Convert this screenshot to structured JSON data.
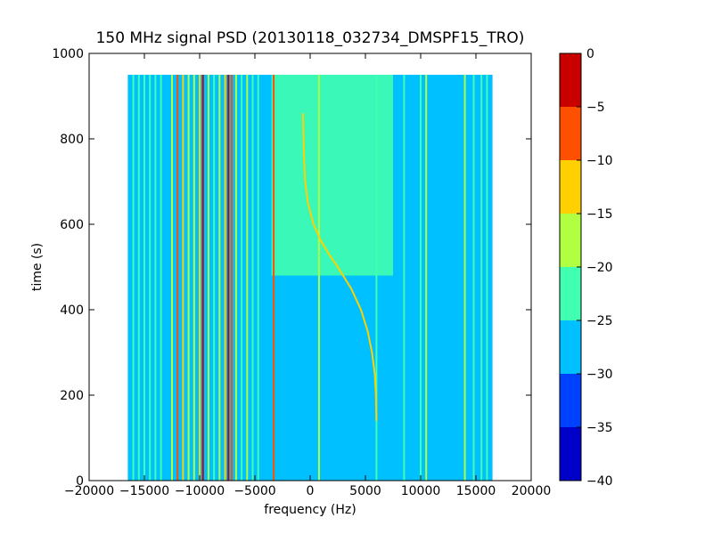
{
  "chart_data": {
    "type": "heatmap",
    "title": "150 MHz signal PSD (20130118_032734_DMSPF15_TRO)",
    "xlabel": "frequency (Hz)",
    "ylabel": "time (s)",
    "xlim": [
      -20000,
      20000
    ],
    "ylim": [
      0,
      1000
    ],
    "x_ticks": [
      -20000,
      -15000,
      -10000,
      -5000,
      0,
      5000,
      10000,
      15000,
      20000
    ],
    "x_tick_labels": [
      "−20000",
      "−15000",
      "−10000",
      "−5000",
      "0",
      "5000",
      "10000",
      "15000",
      "20000"
    ],
    "y_ticks": [
      0,
      200,
      400,
      600,
      800,
      1000
    ],
    "y_tick_labels": [
      "0",
      "200",
      "400",
      "600",
      "800",
      "1000"
    ],
    "data_extent": {
      "freq_min": -16500,
      "freq_max": 16500,
      "time_min": 0,
      "time_max": 950
    },
    "background_level": -27.5,
    "enhanced_band": {
      "level": -22.5,
      "time_min": 480,
      "time_max": 950,
      "freq_min": -3500,
      "freq_max": 7500
    },
    "colorbar": {
      "range": [
        -40,
        0
      ],
      "levels": [
        -40,
        -35,
        -30,
        -25,
        -20,
        -15,
        -10,
        -5,
        0
      ],
      "tick_labels": [
        "−40",
        "−35",
        "−30",
        "−25",
        "−20",
        "−15",
        "−10",
        "−5",
        "0"
      ],
      "colors": [
        "#0000c8",
        "#0040ff",
        "#00c0ff",
        "#40ffb0",
        "#b0ff40",
        "#ffd000",
        "#ff5000",
        "#c80000"
      ]
    },
    "spectral_lines": [
      {
        "freq": -16000,
        "level": -22,
        "time_min": 0,
        "time_max": 950
      },
      {
        "freq": -15500,
        "level": -22,
        "time_min": 0,
        "time_max": 950
      },
      {
        "freq": -15000,
        "level": -22,
        "time_min": 0,
        "time_max": 950
      },
      {
        "freq": -14500,
        "level": -22,
        "time_min": 0,
        "time_max": 950
      },
      {
        "freq": -14000,
        "level": -22,
        "time_min": 0,
        "time_max": 950
      },
      {
        "freq": -13500,
        "level": -22,
        "time_min": 0,
        "time_max": 950
      },
      {
        "freq": -12500,
        "level": -17,
        "time_min": 0,
        "time_max": 950
      },
      {
        "freq": -12000,
        "level": -7,
        "time_min": 0,
        "time_max": 950
      },
      {
        "freq": -11500,
        "level": -12,
        "time_min": 0,
        "time_max": 950
      },
      {
        "freq": -11000,
        "level": -17,
        "time_min": 0,
        "time_max": 950
      },
      {
        "freq": -10500,
        "level": -17,
        "time_min": 0,
        "time_max": 950
      },
      {
        "freq": -10000,
        "level": -12,
        "time_min": 0,
        "time_max": 950
      },
      {
        "freq": -9700,
        "level": -2,
        "time_min": 0,
        "time_max": 950
      },
      {
        "freq": -9200,
        "level": -17,
        "time_min": 0,
        "time_max": 950
      },
      {
        "freq": -8700,
        "level": -22,
        "time_min": 0,
        "time_max": 950
      },
      {
        "freq": -8200,
        "level": -17,
        "time_min": 0,
        "time_max": 950
      },
      {
        "freq": -7700,
        "level": -12,
        "time_min": 0,
        "time_max": 950
      },
      {
        "freq": -7400,
        "level": -2,
        "time_min": 0,
        "time_max": 950
      },
      {
        "freq": -7100,
        "level": -7,
        "time_min": 0,
        "time_max": 950
      },
      {
        "freq": -6700,
        "level": -17,
        "time_min": 0,
        "time_max": 950
      },
      {
        "freq": -6200,
        "level": -22,
        "time_min": 0,
        "time_max": 950
      },
      {
        "freq": -5700,
        "level": -17,
        "time_min": 0,
        "time_max": 950
      },
      {
        "freq": -5200,
        "level": -22,
        "time_min": 0,
        "time_max": 950
      },
      {
        "freq": -4700,
        "level": -22,
        "time_min": 0,
        "time_max": 950
      },
      {
        "freq": -3300,
        "level": -7,
        "time_min": 0,
        "time_max": 950
      },
      {
        "freq": 800,
        "level": -17,
        "time_min": 0,
        "time_max": 950
      },
      {
        "freq": 6000,
        "level": -22,
        "time_min": 0,
        "time_max": 950
      },
      {
        "freq": 8500,
        "level": -22,
        "time_min": 0,
        "time_max": 950
      },
      {
        "freq": 10000,
        "level": -22,
        "time_min": 0,
        "time_max": 950
      },
      {
        "freq": 10500,
        "level": -17,
        "time_min": 0,
        "time_max": 950
      },
      {
        "freq": 14000,
        "level": -17,
        "time_min": 0,
        "time_max": 950
      },
      {
        "freq": 14800,
        "level": -22,
        "time_min": 0,
        "time_max": 950
      },
      {
        "freq": 15500,
        "level": -22,
        "time_min": 0,
        "time_max": 950
      },
      {
        "freq": 16000,
        "level": -22,
        "time_min": 0,
        "time_max": 950
      }
    ],
    "doppler_trace": {
      "level": -12,
      "points": [
        {
          "time": 140,
          "freq": 6000
        },
        {
          "time": 200,
          "freq": 5950
        },
        {
          "time": 250,
          "freq": 5850
        },
        {
          "time": 300,
          "freq": 5600
        },
        {
          "time": 350,
          "freq": 5200
        },
        {
          "time": 400,
          "freq": 4600
        },
        {
          "time": 450,
          "freq": 3700
        },
        {
          "time": 500,
          "freq": 2500
        },
        {
          "time": 530,
          "freq": 1700
        },
        {
          "time": 560,
          "freq": 1000
        },
        {
          "time": 600,
          "freq": 300
        },
        {
          "time": 650,
          "freq": -200
        },
        {
          "time": 700,
          "freq": -450
        },
        {
          "time": 750,
          "freq": -550
        },
        {
          "time": 800,
          "freq": -600
        },
        {
          "time": 860,
          "freq": -650
        }
      ]
    }
  }
}
